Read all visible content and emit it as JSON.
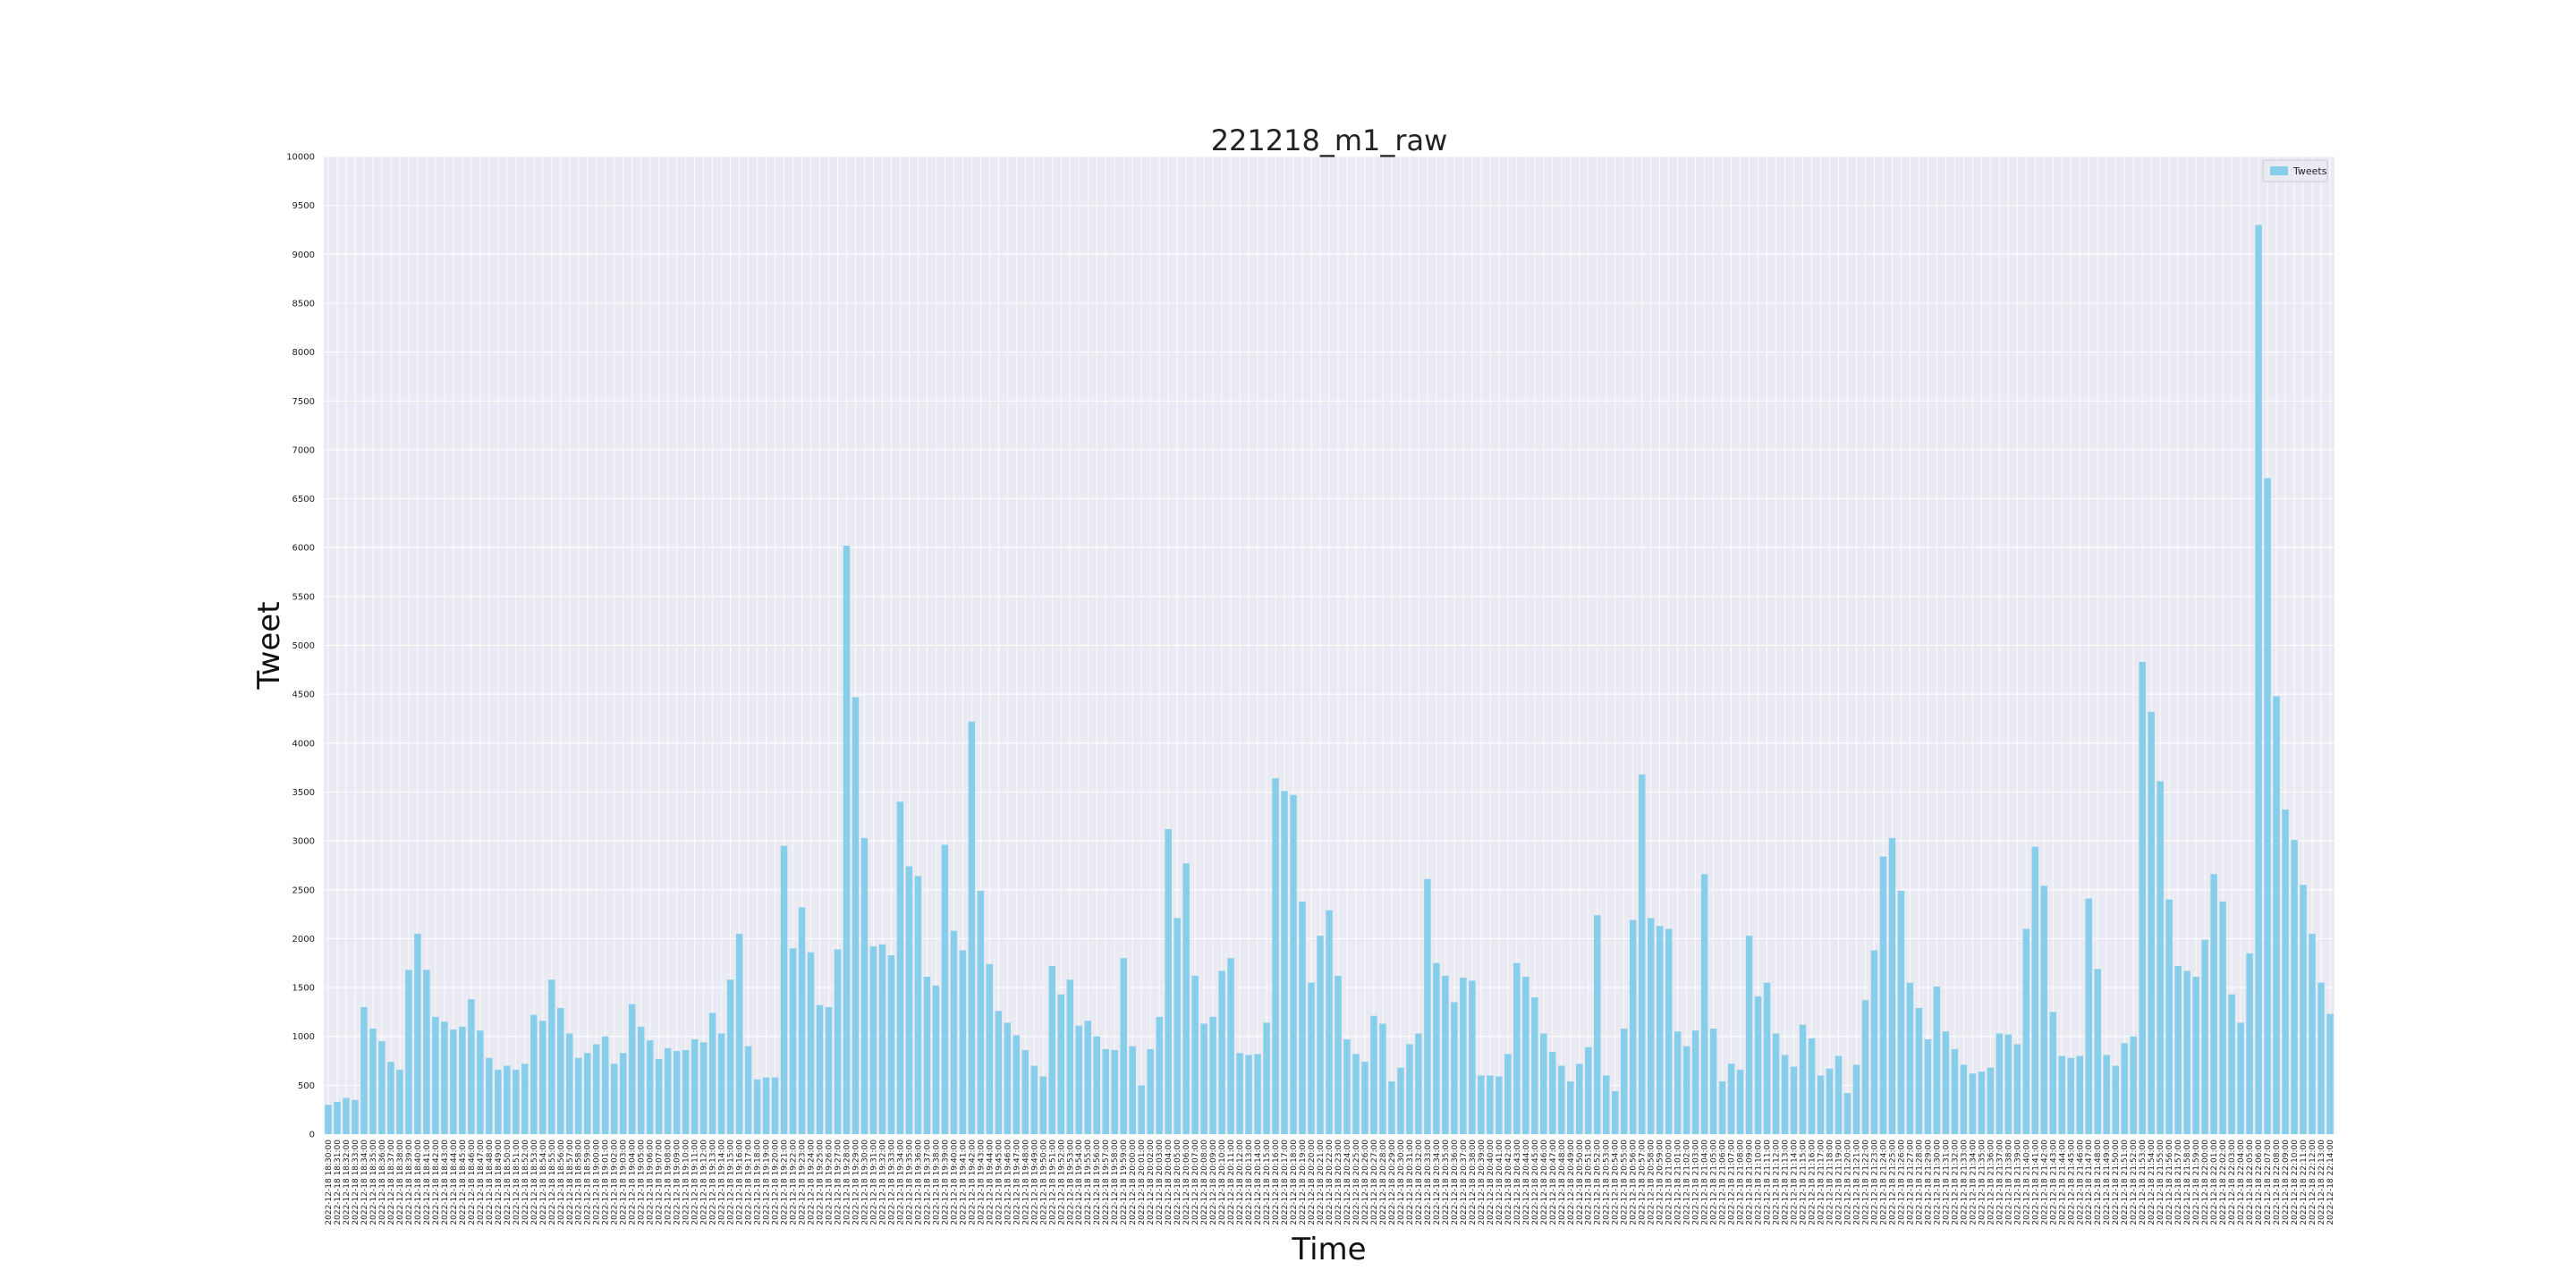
{
  "chart_data": {
    "type": "bar",
    "title": "221218_m1_raw",
    "xlabel": "Time",
    "ylabel": "Tweet",
    "ylim": [
      0,
      10000
    ],
    "yticks": [
      0,
      500,
      1000,
      1500,
      2000,
      2500,
      3000,
      3500,
      4000,
      4500,
      5000,
      5500,
      6000,
      6500,
      7000,
      7500,
      8000,
      8500,
      9000,
      9500,
      10000
    ],
    "grid": true,
    "legend_position": "top-right",
    "bar_color": "#87ceeb",
    "plot_background": "#eaeaf2",
    "categories": [
      "2022-12-18 18:30:00",
      "2022-12-18 18:31:00",
      "2022-12-18 18:32:00",
      "2022-12-18 18:33:00",
      "2022-12-18 18:34:00",
      "2022-12-18 18:35:00",
      "2022-12-18 18:36:00",
      "2022-12-18 18:37:00",
      "2022-12-18 18:38:00",
      "2022-12-18 18:39:00",
      "2022-12-18 18:40:00",
      "2022-12-18 18:41:00",
      "2022-12-18 18:42:00",
      "2022-12-18 18:43:00",
      "2022-12-18 18:44:00",
      "2022-12-18 18:45:00",
      "2022-12-18 18:46:00",
      "2022-12-18 18:47:00",
      "2022-12-18 18:48:00",
      "2022-12-18 18:49:00",
      "2022-12-18 18:50:00",
      "2022-12-18 18:51:00",
      "2022-12-18 18:52:00",
      "2022-12-18 18:53:00",
      "2022-12-18 18:54:00",
      "2022-12-18 18:55:00",
      "2022-12-18 18:56:00",
      "2022-12-18 18:57:00",
      "2022-12-18 18:58:00",
      "2022-12-18 18:59:00",
      "2022-12-18 19:00:00",
      "2022-12-18 19:01:00",
      "2022-12-18 19:02:00",
      "2022-12-18 19:03:00",
      "2022-12-18 19:04:00",
      "2022-12-18 19:05:00",
      "2022-12-18 19:06:00",
      "2022-12-18 19:07:00",
      "2022-12-18 19:08:00",
      "2022-12-18 19:09:00",
      "2022-12-18 19:10:00",
      "2022-12-18 19:11:00",
      "2022-12-18 19:12:00",
      "2022-12-18 19:13:00",
      "2022-12-18 19:14:00",
      "2022-12-18 19:15:00",
      "2022-12-18 19:16:00",
      "2022-12-18 19:17:00",
      "2022-12-18 19:18:00",
      "2022-12-18 19:19:00",
      "2022-12-18 19:20:00",
      "2022-12-18 19:21:00",
      "2022-12-18 19:22:00",
      "2022-12-18 19:23:00",
      "2022-12-18 19:24:00",
      "2022-12-18 19:25:00",
      "2022-12-18 19:26:00",
      "2022-12-18 19:27:00",
      "2022-12-18 19:28:00",
      "2022-12-18 19:29:00",
      "2022-12-18 19:30:00",
      "2022-12-18 19:31:00",
      "2022-12-18 19:32:00",
      "2022-12-18 19:33:00",
      "2022-12-18 19:34:00",
      "2022-12-18 19:35:00",
      "2022-12-18 19:36:00",
      "2022-12-18 19:37:00",
      "2022-12-18 19:38:00",
      "2022-12-18 19:39:00",
      "2022-12-18 19:40:00",
      "2022-12-18 19:41:00",
      "2022-12-18 19:42:00",
      "2022-12-18 19:43:00",
      "2022-12-18 19:44:00",
      "2022-12-18 19:45:00",
      "2022-12-18 19:46:00",
      "2022-12-18 19:47:00",
      "2022-12-18 19:48:00",
      "2022-12-18 19:49:00",
      "2022-12-18 19:50:00",
      "2022-12-18 19:51:00",
      "2022-12-18 19:52:00",
      "2022-12-18 19:53:00",
      "2022-12-18 19:54:00",
      "2022-12-18 19:55:00",
      "2022-12-18 19:56:00",
      "2022-12-18 19:57:00",
      "2022-12-18 19:58:00",
      "2022-12-18 19:59:00",
      "2022-12-18 20:00:00",
      "2022-12-18 20:01:00",
      "2022-12-18 20:02:00",
      "2022-12-18 20:03:00",
      "2022-12-18 20:04:00",
      "2022-12-18 20:05:00",
      "2022-12-18 20:06:00",
      "2022-12-18 20:07:00",
      "2022-12-18 20:08:00",
      "2022-12-18 20:09:00",
      "2022-12-18 20:10:00",
      "2022-12-18 20:11:00",
      "2022-12-18 20:12:00",
      "2022-12-18 20:13:00",
      "2022-12-18 20:14:00",
      "2022-12-18 20:15:00",
      "2022-12-18 20:16:00",
      "2022-12-18 20:17:00",
      "2022-12-18 20:18:00",
      "2022-12-18 20:19:00",
      "2022-12-18 20:20:00",
      "2022-12-18 20:21:00",
      "2022-12-18 20:22:00",
      "2022-12-18 20:23:00",
      "2022-12-18 20:24:00",
      "2022-12-18 20:25:00",
      "2022-12-18 20:26:00",
      "2022-12-18 20:27:00",
      "2022-12-18 20:28:00",
      "2022-12-18 20:29:00",
      "2022-12-18 20:30:00",
      "2022-12-18 20:31:00",
      "2022-12-18 20:32:00",
      "2022-12-18 20:33:00",
      "2022-12-18 20:34:00",
      "2022-12-18 20:35:00",
      "2022-12-18 20:36:00",
      "2022-12-18 20:37:00",
      "2022-12-18 20:38:00",
      "2022-12-18 20:39:00",
      "2022-12-18 20:40:00",
      "2022-12-18 20:41:00",
      "2022-12-18 20:42:00",
      "2022-12-18 20:43:00",
      "2022-12-18 20:44:00",
      "2022-12-18 20:45:00",
      "2022-12-18 20:46:00",
      "2022-12-18 20:47:00",
      "2022-12-18 20:48:00",
      "2022-12-18 20:49:00",
      "2022-12-18 20:50:00",
      "2022-12-18 20:51:00",
      "2022-12-18 20:52:00",
      "2022-12-18 20:53:00",
      "2022-12-18 20:54:00",
      "2022-12-18 20:55:00",
      "2022-12-18 20:56:00",
      "2022-12-18 20:57:00",
      "2022-12-18 20:58:00",
      "2022-12-18 20:59:00",
      "2022-12-18 21:00:00",
      "2022-12-18 21:01:00",
      "2022-12-18 21:02:00",
      "2022-12-18 21:03:00",
      "2022-12-18 21:04:00",
      "2022-12-18 21:05:00",
      "2022-12-18 21:06:00",
      "2022-12-18 21:07:00",
      "2022-12-18 21:08:00",
      "2022-12-18 21:09:00",
      "2022-12-18 21:10:00",
      "2022-12-18 21:11:00",
      "2022-12-18 21:12:00",
      "2022-12-18 21:13:00",
      "2022-12-18 21:14:00",
      "2022-12-18 21:15:00",
      "2022-12-18 21:16:00",
      "2022-12-18 21:17:00",
      "2022-12-18 21:18:00",
      "2022-12-18 21:19:00",
      "2022-12-18 21:20:00",
      "2022-12-18 21:21:00",
      "2022-12-18 21:22:00",
      "2022-12-18 21:23:00",
      "2022-12-18 21:24:00",
      "2022-12-18 21:25:00",
      "2022-12-18 21:26:00",
      "2022-12-18 21:27:00",
      "2022-12-18 21:28:00",
      "2022-12-18 21:29:00",
      "2022-12-18 21:30:00",
      "2022-12-18 21:31:00",
      "2022-12-18 21:32:00",
      "2022-12-18 21:33:00",
      "2022-12-18 21:34:00",
      "2022-12-18 21:35:00",
      "2022-12-18 21:36:00",
      "2022-12-18 21:37:00",
      "2022-12-18 21:38:00",
      "2022-12-18 21:39:00",
      "2022-12-18 21:40:00",
      "2022-12-18 21:41:00",
      "2022-12-18 21:42:00",
      "2022-12-18 21:43:00",
      "2022-12-18 21:44:00",
      "2022-12-18 21:45:00",
      "2022-12-18 21:46:00",
      "2022-12-18 21:47:00",
      "2022-12-18 21:48:00",
      "2022-12-18 21:49:00",
      "2022-12-18 21:50:00",
      "2022-12-18 21:51:00",
      "2022-12-18 21:52:00",
      "2022-12-18 21:53:00",
      "2022-12-18 21:54:00",
      "2022-12-18 21:55:00",
      "2022-12-18 21:56:00",
      "2022-12-18 21:57:00",
      "2022-12-18 21:58:00",
      "2022-12-18 21:59:00",
      "2022-12-18 22:00:00",
      "2022-12-18 22:01:00",
      "2022-12-18 22:02:00",
      "2022-12-18 22:03:00",
      "2022-12-18 22:04:00",
      "2022-12-18 22:05:00",
      "2022-12-18 22:06:00",
      "2022-12-18 22:07:00",
      "2022-12-18 22:08:00",
      "2022-12-18 22:09:00",
      "2022-12-18 22:10:00",
      "2022-12-18 22:11:00",
      "2022-12-18 22:12:00",
      "2022-12-18 22:13:00",
      "2022-12-18 22:14:00"
    ],
    "series": [
      {
        "name": "Tweets",
        "values": [
          300,
          330,
          370,
          350,
          1300,
          1080,
          950,
          740,
          660,
          1680,
          2050,
          1680,
          1200,
          1150,
          1070,
          1100,
          1380,
          1060,
          780,
          660,
          700,
          660,
          720,
          1220,
          1160,
          1580,
          1290,
          1030,
          780,
          830,
          920,
          1000,
          720,
          830,
          1330,
          1100,
          960,
          770,
          880,
          850,
          860,
          970,
          940,
          1240,
          1030,
          1580,
          2050,
          900,
          560,
          580,
          580,
          2950,
          1900,
          2320,
          1860,
          1320,
          1300,
          1890,
          6020,
          4470,
          3030,
          1920,
          1940,
          1830,
          3400,
          2740,
          2640,
          1610,
          1520,
          2960,
          2080,
          1880,
          4220,
          2490,
          1740,
          1260,
          1140,
          1010,
          860,
          700,
          590,
          1720,
          1430,
          1580,
          1110,
          1160,
          1000,
          870,
          860,
          1800,
          900,
          500,
          870,
          1200,
          3120,
          2210,
          2770,
          1620,
          1130,
          1200,
          1670,
          1800,
          830,
          810,
          820,
          1140,
          3640,
          3510,
          3470,
          2380,
          1550,
          2030,
          2290,
          1620,
          970,
          820,
          740,
          1210,
          1130,
          540,
          680,
          920,
          1030,
          2610,
          1750,
          1620,
          1350,
          1600,
          1570,
          600,
          600,
          590,
          820,
          1750,
          1610,
          1400,
          1030,
          840,
          700,
          540,
          720,
          890,
          2240,
          600,
          440,
          1080,
          2190,
          3680,
          2210,
          2130,
          2100,
          1050,
          900,
          1060,
          2660,
          1080,
          540,
          720,
          660,
          2030,
          1410,
          1550,
          1030,
          810,
          690,
          1120,
          980,
          600,
          670,
          800,
          420,
          710,
          1370,
          1880,
          2840,
          3030,
          2490,
          1550,
          1290,
          970,
          1510,
          1050,
          870,
          710,
          620,
          640,
          680,
          1030,
          1020,
          920,
          2100,
          2940,
          2540,
          1250,
          800,
          780,
          800,
          2410,
          1690,
          810,
          700,
          930,
          1000,
          4830,
          4320,
          3610,
          2400,
          1720,
          1670,
          1610,
          1990,
          2660,
          2380,
          1430,
          1140,
          1850,
          9300,
          6710,
          4480,
          3320,
          3010,
          2550,
          2050,
          1550,
          1230
        ]
      }
    ]
  }
}
